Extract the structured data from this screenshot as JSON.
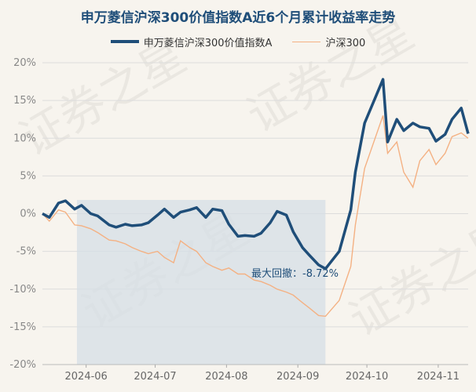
{
  "chart_data": {
    "type": "line",
    "title": "申万菱信沪深300价值指数A近6个月累计收益率走势",
    "xlabel": "",
    "ylabel": "",
    "ylim": [
      -20,
      20
    ],
    "y_ticks": [
      "20%",
      "15%",
      "10%",
      "5%",
      "0%",
      "-5%",
      "-10%",
      "-15%",
      "-20%"
    ],
    "x_ticks": [
      "2024-06",
      "2024-07",
      "2024-08",
      "2024-09",
      "2024-10",
      "2024-11"
    ],
    "legend_position": "top-center",
    "grid": "horizontal",
    "annotation": {
      "text": "最大回撤：-8.72%",
      "value": -8.72,
      "start_date": "2024-05-28",
      "end_date": "2024-09-13"
    },
    "watermark": "证券之星",
    "colors": {
      "fund": "#1f4e79",
      "index": "#f4b183",
      "drawdown_shade": "#d5dfe6"
    },
    "series": [
      {
        "name": "申万菱信沪深300价值指数A",
        "x": [
          "2024-05-13",
          "2024-05-16",
          "2024-05-20",
          "2024-05-23",
          "2024-05-27",
          "2024-05-30",
          "2024-06-03",
          "2024-06-06",
          "2024-06-11",
          "2024-06-14",
          "2024-06-18",
          "2024-06-21",
          "2024-06-25",
          "2024-06-28",
          "2024-07-02",
          "2024-07-05",
          "2024-07-09",
          "2024-07-12",
          "2024-07-16",
          "2024-07-19",
          "2024-07-23",
          "2024-07-26",
          "2024-07-30",
          "2024-08-02",
          "2024-08-06",
          "2024-08-09",
          "2024-08-13",
          "2024-08-16",
          "2024-08-20",
          "2024-08-23",
          "2024-08-27",
          "2024-08-30",
          "2024-09-03",
          "2024-09-06",
          "2024-09-10",
          "2024-09-13",
          "2024-09-19",
          "2024-09-24",
          "2024-09-26",
          "2024-09-30",
          "2024-10-08",
          "2024-10-10",
          "2024-10-14",
          "2024-10-17",
          "2024-10-21",
          "2024-10-24",
          "2024-10-28",
          "2024-10-31",
          "2024-11-04",
          "2024-11-07",
          "2024-11-11",
          "2024-11-14"
        ],
        "values": [
          0.0,
          -0.5,
          1.4,
          1.7,
          0.6,
          1.1,
          0.0,
          -0.3,
          -1.5,
          -1.8,
          -1.4,
          -1.6,
          -1.5,
          -1.2,
          -0.2,
          0.6,
          -0.5,
          0.2,
          0.5,
          0.8,
          -0.5,
          0.6,
          0.4,
          -1.4,
          -3.0,
          -2.9,
          -3.0,
          -2.6,
          -1.2,
          0.3,
          -0.2,
          -2.4,
          -4.5,
          -5.5,
          -6.8,
          -7.3,
          -5.0,
          0.5,
          5.5,
          12.0,
          17.8,
          9.5,
          12.5,
          11.0,
          12.0,
          11.5,
          11.3,
          9.6,
          10.5,
          12.5,
          14.0,
          10.6
        ]
      },
      {
        "name": "沪深300",
        "x": [
          "2024-05-13",
          "2024-05-16",
          "2024-05-20",
          "2024-05-23",
          "2024-05-27",
          "2024-05-30",
          "2024-06-03",
          "2024-06-06",
          "2024-06-11",
          "2024-06-14",
          "2024-06-18",
          "2024-06-21",
          "2024-06-25",
          "2024-06-28",
          "2024-07-02",
          "2024-07-05",
          "2024-07-09",
          "2024-07-12",
          "2024-07-16",
          "2024-07-19",
          "2024-07-23",
          "2024-07-26",
          "2024-07-30",
          "2024-08-02",
          "2024-08-06",
          "2024-08-09",
          "2024-08-13",
          "2024-08-16",
          "2024-08-20",
          "2024-08-23",
          "2024-08-27",
          "2024-08-30",
          "2024-09-03",
          "2024-09-06",
          "2024-09-10",
          "2024-09-13",
          "2024-09-19",
          "2024-09-24",
          "2024-09-26",
          "2024-09-30",
          "2024-10-08",
          "2024-10-10",
          "2024-10-14",
          "2024-10-17",
          "2024-10-21",
          "2024-10-24",
          "2024-10-28",
          "2024-10-31",
          "2024-11-04",
          "2024-11-07",
          "2024-11-11",
          "2024-11-14"
        ],
        "values": [
          0.0,
          -1.0,
          0.5,
          0.2,
          -1.5,
          -1.6,
          -2.0,
          -2.5,
          -3.5,
          -3.6,
          -4.0,
          -4.5,
          -5.0,
          -5.3,
          -5.0,
          -5.8,
          -6.5,
          -3.6,
          -4.5,
          -5.0,
          -6.5,
          -7.0,
          -7.5,
          -7.2,
          -8.0,
          -8.0,
          -8.8,
          -9.0,
          -9.5,
          -10.0,
          -10.4,
          -10.8,
          -11.8,
          -12.5,
          -13.5,
          -13.6,
          -11.5,
          -7.0,
          -1.5,
          6.0,
          13.0,
          8.0,
          9.5,
          5.5,
          3.5,
          7.0,
          8.5,
          6.5,
          8.0,
          10.2,
          10.7,
          10.0
        ]
      }
    ]
  }
}
